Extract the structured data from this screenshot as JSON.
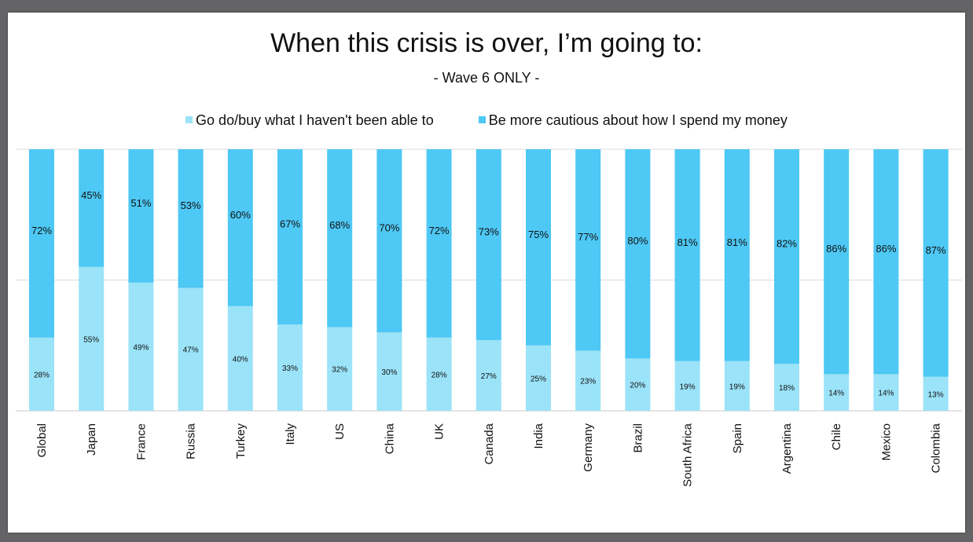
{
  "chart_data": {
    "type": "bar",
    "stacked": true,
    "percent_stacked": true,
    "title": "When this crisis is over, I’m going to:",
    "subtitle": "- Wave 6 ONLY -",
    "legend_position": "top",
    "grid": true,
    "ylim": [
      0,
      100
    ],
    "categories": [
      "Global",
      "Japan",
      "France",
      "Russia",
      "Turkey",
      "Italy",
      "US",
      "China",
      "UK",
      "Canada",
      "India",
      "Germany",
      "Brazil",
      "South Africa",
      "Spain",
      "Argentina",
      "Chile",
      "Mexico",
      "Colombia"
    ],
    "series": [
      {
        "name": "Go do/buy what I haven't been able to",
        "color": "#9be3f8",
        "values": [
          28,
          55,
          49,
          47,
          40,
          33,
          32,
          30,
          28,
          27,
          25,
          23,
          20,
          19,
          19,
          18,
          14,
          14,
          13
        ],
        "labels": [
          "28%",
          "55%",
          "49%",
          "47%",
          "40%",
          "33%",
          "32%",
          "30%",
          "28%",
          "27%",
          "25%",
          "23%",
          "20%",
          "19%",
          "19%",
          "18%",
          "14%",
          "14%",
          "13%"
        ]
      },
      {
        "name": "Be more cautious about how I spend my money",
        "color": "#4ec8f4",
        "values": [
          72,
          45,
          51,
          53,
          60,
          67,
          68,
          70,
          72,
          73,
          75,
          77,
          80,
          81,
          81,
          82,
          86,
          86,
          87
        ],
        "labels": [
          "72%",
          "45%",
          "51%",
          "53%",
          "60%",
          "67%",
          "68%",
          "70%",
          "72%",
          "73%",
          "75%",
          "77%",
          "80%",
          "81%",
          "81%",
          "82%",
          "86%",
          "86%",
          "87%"
        ]
      }
    ]
  }
}
